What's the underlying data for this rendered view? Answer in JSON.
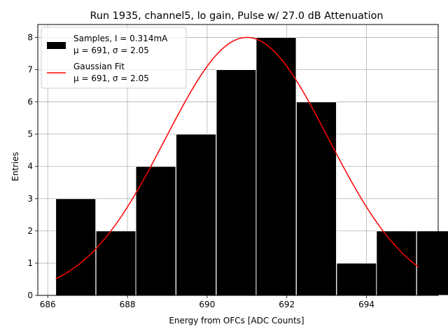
{
  "chart_data": {
    "type": "bar",
    "title": "Run 1935, channel5, lo gain, Pulse w/ 27.0 dB Attenuation",
    "xlabel": "Energy from OFCs [ADC Counts]",
    "ylabel": "Entries",
    "xlim": [
      685.75,
      695.8
    ],
    "ylim": [
      0,
      8.4
    ],
    "grid": true,
    "xticks": [
      686,
      688,
      690,
      692,
      694
    ],
    "yticks": [
      0,
      1,
      2,
      3,
      4,
      5,
      6,
      7,
      8
    ],
    "bins": {
      "edges": [
        686.2,
        687.2,
        688.2,
        689.2,
        690.2,
        691.2,
        692.2,
        693.2,
        694.2,
        695.2,
        696.2
      ],
      "edges_note": "approximate",
      "left_edges": [
        686.2,
        687.21,
        688.21,
        689.22,
        690.23,
        691.23,
        692.24,
        693.25,
        694.25,
        695.26
      ],
      "width": 1.005,
      "counts": [
        3,
        2,
        4,
        5,
        7,
        8,
        6,
        1,
        2,
        2
      ],
      "color": "#000000",
      "edgecolor": "#ffffff"
    },
    "fit": {
      "type": "gaussian",
      "mu": 691.0,
      "sigma": 2.05,
      "amplitude": 8.0,
      "x_range": [
        686.2,
        695.3
      ],
      "color": "#ff0000"
    },
    "legend": {
      "position": "top-left",
      "entries": [
        {
          "label_line1": "Samples, I = 0.314mA",
          "label_line2": "μ = 691, σ = 2.05",
          "kind": "patch",
          "color": "#000000"
        },
        {
          "label_line1": "Gaussian Fit",
          "label_line2": "μ = 691, σ = 2.05",
          "kind": "line",
          "color": "#ff0000"
        }
      ]
    }
  }
}
